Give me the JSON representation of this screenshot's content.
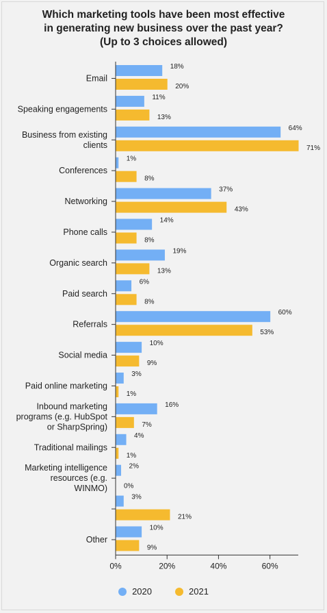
{
  "chart_data": {
    "type": "bar",
    "orientation": "horizontal",
    "title_lines": [
      "Which marketing tools have been most effective",
      "in generating new business over the past year?",
      "(Up to 3 choices allowed)"
    ],
    "categories": [
      [
        "Email"
      ],
      [
        "Speaking engagements"
      ],
      [
        "Business from existing",
        "clients"
      ],
      [
        "Conferences"
      ],
      [
        "Networking"
      ],
      [
        "Phone calls"
      ],
      [
        "Organic search"
      ],
      [
        "Paid search"
      ],
      [
        "Referrals"
      ],
      [
        "Social media"
      ],
      [
        "Paid online marketing"
      ],
      [
        "Inbound marketing",
        "programs (e.g. HubSpot",
        "or SharpSpring)"
      ],
      [
        "Traditional mailings"
      ],
      [
        "Marketing intelligence",
        "resources (e.g.",
        "WINMO)"
      ],
      [],
      [
        "Other"
      ]
    ],
    "series": [
      {
        "name": "2020",
        "color": "#73aff5",
        "values": [
          18,
          11,
          64,
          1,
          37,
          14,
          19,
          6,
          60,
          10,
          3,
          16,
          4,
          2,
          3,
          10
        ]
      },
      {
        "name": "2021",
        "color": "#f5ba2f",
        "values": [
          20,
          13,
          71,
          8,
          43,
          8,
          13,
          8,
          53,
          9,
          1,
          7,
          1,
          0,
          21,
          9
        ]
      }
    ],
    "value_suffix": "%",
    "xlim": [
      0,
      71
    ],
    "x_ticks": [
      0,
      20,
      40,
      60
    ],
    "x_tick_labels": [
      "0%",
      "20%",
      "40%",
      "60%"
    ],
    "grid": false,
    "legend_position": "bottom"
  }
}
